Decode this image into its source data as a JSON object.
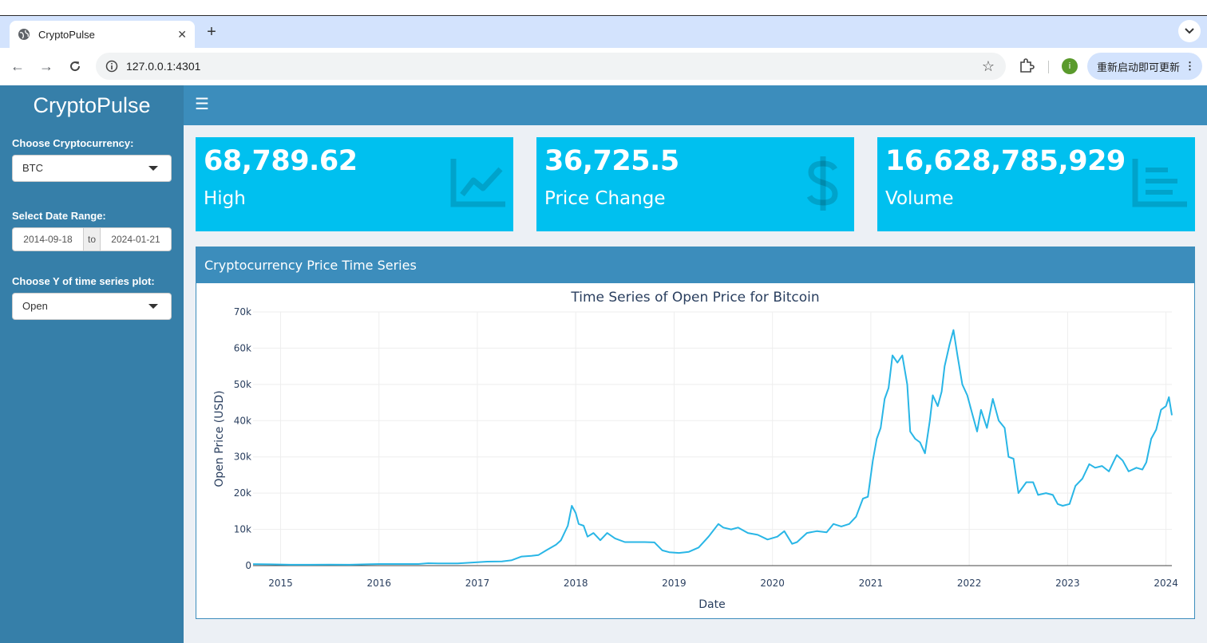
{
  "browser": {
    "tab_title": "CryptoPulse",
    "url": "127.0.0.1:4301",
    "profile_initial": "i",
    "update_label": "重新启动即可更新"
  },
  "app": {
    "brand": "CryptoPulse",
    "crypto_label": "Choose Cryptocurrency:",
    "crypto_value": "BTC",
    "date_label": "Select Date Range:",
    "date_start": "2014-09-18",
    "date_sep": "to",
    "date_end": "2024-01-21",
    "y_label": "Choose Y of time series plot:",
    "y_value": "Open"
  },
  "value_boxes": [
    {
      "value": "68,789.62",
      "caption": "High",
      "icon": "line-chart-icon"
    },
    {
      "value": "36,725.5",
      "caption": "Price Change",
      "icon": "dollar-icon"
    },
    {
      "value": "16,628,785,929",
      "caption": "Volume",
      "icon": "bar-list-icon"
    }
  ],
  "panel": {
    "title": "Cryptocurrency Price Time Series"
  },
  "colors": {
    "accent": "#3c8dbc",
    "sidebar": "#367fa9",
    "box": "#00c0ef",
    "line": "#29b6e6"
  },
  "chart_data": {
    "type": "line",
    "title": "Time Series of Open Price for Bitcoin",
    "xlabel": "Date",
    "ylabel": "Open Price (USD)",
    "ylim": [
      0,
      70000
    ],
    "xlim": [
      2014.72,
      2024.06
    ],
    "yticks": [
      0,
      10000,
      20000,
      30000,
      40000,
      50000,
      60000,
      70000
    ],
    "ytick_labels": [
      "0",
      "10k",
      "20k",
      "30k",
      "40k",
      "50k",
      "60k",
      "70k"
    ],
    "xticks": [
      2015,
      2016,
      2017,
      2018,
      2019,
      2020,
      2021,
      2022,
      2023,
      2024
    ],
    "xtick_labels": [
      "2015",
      "2016",
      "2017",
      "2018",
      "2019",
      "2020",
      "2021",
      "2022",
      "2023",
      "2024"
    ],
    "grid": true,
    "series": [
      {
        "x": [
          2014.72,
          2014.9,
          2015.0,
          2015.1,
          2015.3,
          2015.5,
          2015.7,
          2015.9,
          2016.0,
          2016.2,
          2016.4,
          2016.5,
          2016.6,
          2016.8,
          2017.0,
          2017.1,
          2017.25,
          2017.35,
          2017.45,
          2017.55,
          2017.62,
          2017.7,
          2017.8,
          2017.85,
          2017.92,
          2017.96,
          2018.0,
          2018.03,
          2018.08,
          2018.12,
          2018.18,
          2018.25,
          2018.32,
          2018.4,
          2018.5,
          2018.6,
          2018.7,
          2018.8,
          2018.88,
          2018.95,
          2019.05,
          2019.15,
          2019.25,
          2019.35,
          2019.45,
          2019.5,
          2019.58,
          2019.65,
          2019.75,
          2019.85,
          2019.95,
          2020.05,
          2020.12,
          2020.2,
          2020.25,
          2020.35,
          2020.45,
          2020.55,
          2020.62,
          2020.7,
          2020.78,
          2020.85,
          2020.92,
          2020.97,
          2021.02,
          2021.06,
          2021.1,
          2021.14,
          2021.18,
          2021.22,
          2021.27,
          2021.32,
          2021.37,
          2021.4,
          2021.45,
          2021.5,
          2021.55,
          2021.6,
          2021.63,
          2021.68,
          2021.72,
          2021.75,
          2021.8,
          2021.84,
          2021.88,
          2021.93,
          2021.98,
          2022.03,
          2022.08,
          2022.12,
          2022.18,
          2022.24,
          2022.3,
          2022.36,
          2022.4,
          2022.45,
          2022.5,
          2022.58,
          2022.65,
          2022.7,
          2022.78,
          2022.85,
          2022.9,
          2022.95,
          2023.02,
          2023.08,
          2023.15,
          2023.22,
          2023.28,
          2023.35,
          2023.42,
          2023.5,
          2023.56,
          2023.62,
          2023.7,
          2023.76,
          2023.8,
          2023.85,
          2023.9,
          2023.95,
          2024.0,
          2024.03,
          2024.06
        ],
        "y": [
          420,
          350,
          300,
          250,
          240,
          260,
          240,
          380,
          430,
          430,
          450,
          650,
          620,
          600,
          950,
          1100,
          1150,
          1500,
          2500,
          2700,
          2900,
          4200,
          5800,
          7000,
          11000,
          16500,
          14500,
          11500,
          11000,
          8000,
          9000,
          7000,
          9000,
          7500,
          6500,
          6500,
          6500,
          6400,
          4200,
          3700,
          3500,
          3800,
          5000,
          8000,
          11500,
          10500,
          10000,
          10500,
          9000,
          8500,
          7200,
          8000,
          9500,
          6000,
          6500,
          9000,
          9500,
          9200,
          11500,
          10800,
          11500,
          13500,
          18500,
          19000,
          29000,
          35000,
          38000,
          46000,
          49000,
          58000,
          56000,
          58000,
          50000,
          37000,
          35000,
          34000,
          31000,
          40000,
          47000,
          44000,
          48000,
          55000,
          61000,
          65000,
          58000,
          50000,
          47000,
          42000,
          37000,
          43000,
          38000,
          46000,
          40000,
          38000,
          30000,
          29500,
          20000,
          23000,
          23000,
          19500,
          20000,
          19500,
          17000,
          16500,
          17000,
          22000,
          24000,
          28000,
          27000,
          27500,
          26000,
          30500,
          29000,
          26000,
          27000,
          26500,
          28500,
          35000,
          37500,
          43000,
          44000,
          46500,
          41500
        ]
      }
    ]
  }
}
